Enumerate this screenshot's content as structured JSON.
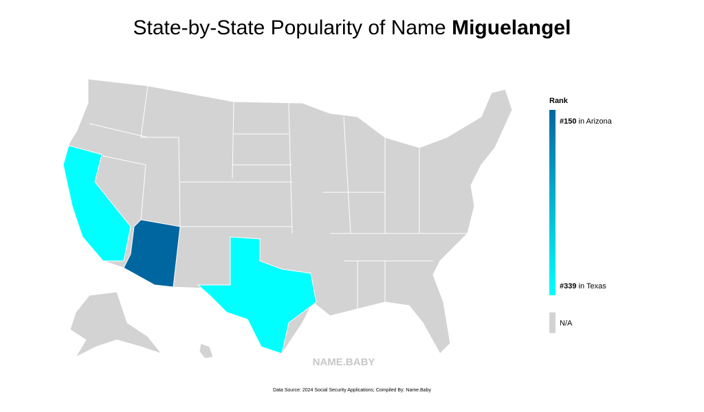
{
  "header": {
    "title": "State-by-State Popularity of Name ",
    "name": "Miguelangel"
  },
  "legend": {
    "title": "Rank",
    "top": {
      "rank": "#150",
      "text": " in Arizona"
    },
    "bottom": {
      "rank": "#339",
      "text": " in Texas"
    },
    "na": "N/A"
  },
  "watermark": "NAME.BABY",
  "footer": "Data Source: 2024 Social Security Applications; Compiled By: Name.Baby"
}
